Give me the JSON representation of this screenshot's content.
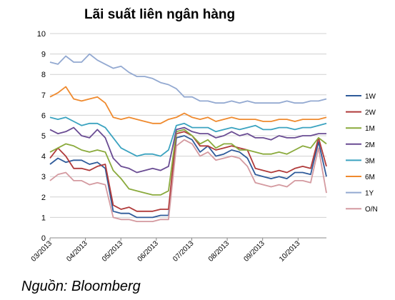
{
  "title": "Lãi suất liên ngân hàng",
  "source": "Nguồn: Bloomberg",
  "chart_data": {
    "type": "line",
    "ylim": [
      0,
      10
    ],
    "yticks": [
      "0",
      "1",
      "2",
      "3",
      "4",
      "5",
      "6",
      "7",
      "8",
      "9",
      "10"
    ],
    "xticks": [
      "03/2013",
      "04/2013",
      "05/2013",
      "06/2013",
      "07/2013",
      "08/2013",
      "09/2013",
      "10/2013"
    ],
    "grid": true,
    "legend_position": "right",
    "series": [
      {
        "name": "1W",
        "color": "#2f5b9a",
        "values": [
          3.6,
          3.9,
          3.7,
          3.8,
          3.8,
          3.6,
          3.7,
          3.4,
          1.3,
          1.2,
          1.2,
          1.0,
          1.0,
          1.0,
          1.1,
          1.1,
          4.9,
          5.0,
          4.8,
          4.2,
          4.5,
          4.0,
          4.1,
          4.3,
          4.2,
          3.9,
          3.1,
          3.0,
          2.9,
          3.0,
          2.9,
          3.2,
          3.2,
          3.1,
          4.7,
          3.0
        ]
      },
      {
        "name": "2W",
        "color": "#b03a3a",
        "values": [
          3.9,
          4.4,
          4.0,
          3.4,
          3.4,
          3.3,
          3.5,
          3.6,
          1.6,
          1.4,
          1.5,
          1.3,
          1.3,
          1.3,
          1.4,
          1.4,
          5.1,
          5.2,
          5.0,
          4.5,
          4.5,
          4.3,
          4.4,
          4.5,
          4.4,
          4.3,
          3.4,
          3.3,
          3.2,
          3.3,
          3.2,
          3.4,
          3.5,
          3.4,
          4.9,
          3.5
        ]
      },
      {
        "name": "1M",
        "color": "#8aaa3c",
        "values": [
          4.2,
          4.4,
          4.6,
          4.5,
          4.3,
          4.2,
          4.3,
          4.2,
          3.3,
          2.9,
          2.4,
          2.3,
          2.2,
          2.1,
          2.1,
          2.3,
          5.2,
          5.3,
          5.0,
          4.6,
          4.8,
          4.4,
          4.6,
          4.6,
          4.3,
          4.3,
          4.2,
          4.1,
          4.1,
          4.2,
          4.1,
          4.3,
          4.5,
          4.4,
          4.9,
          4.6
        ]
      },
      {
        "name": "2M",
        "color": "#6a4c93",
        "values": [
          5.3,
          5.1,
          5.2,
          5.4,
          5.0,
          4.9,
          5.3,
          4.9,
          3.9,
          3.5,
          3.4,
          3.2,
          3.3,
          3.4,
          3.3,
          3.5,
          5.3,
          5.4,
          5.2,
          5.1,
          5.1,
          4.9,
          5.0,
          5.2,
          5.0,
          5.1,
          4.9,
          4.9,
          4.8,
          5.0,
          4.9,
          4.9,
          5.0,
          5.0,
          5.1,
          5.1
        ]
      },
      {
        "name": "3M",
        "color": "#3ba3c0",
        "values": [
          5.9,
          5.8,
          5.9,
          5.7,
          5.5,
          5.6,
          5.6,
          5.4,
          4.9,
          4.4,
          4.2,
          4.0,
          4.1,
          4.1,
          4.0,
          4.3,
          5.5,
          5.6,
          5.4,
          5.4,
          5.4,
          5.2,
          5.3,
          5.4,
          5.3,
          5.4,
          5.5,
          5.3,
          5.3,
          5.4,
          5.4,
          5.3,
          5.4,
          5.4,
          5.5,
          5.6
        ]
      },
      {
        "name": "6M",
        "color": "#ef8a2e",
        "values": [
          6.9,
          7.1,
          7.4,
          6.8,
          6.7,
          6.8,
          6.9,
          6.6,
          5.9,
          5.8,
          5.9,
          5.8,
          5.7,
          5.6,
          5.6,
          5.8,
          5.9,
          6.1,
          5.9,
          5.8,
          5.9,
          5.7,
          5.8,
          5.9,
          5.8,
          5.8,
          5.8,
          5.7,
          5.7,
          5.8,
          5.8,
          5.7,
          5.8,
          5.8,
          5.8,
          5.9
        ]
      },
      {
        "name": "1Y",
        "color": "#93a9d1",
        "values": [
          8.6,
          8.5,
          8.9,
          8.6,
          8.6,
          9.0,
          8.7,
          8.5,
          8.3,
          8.4,
          8.1,
          7.9,
          7.9,
          7.8,
          7.6,
          7.5,
          7.3,
          6.9,
          6.9,
          6.7,
          6.7,
          6.6,
          6.6,
          6.7,
          6.6,
          6.7,
          6.6,
          6.6,
          6.6,
          6.6,
          6.7,
          6.6,
          6.6,
          6.7,
          6.7,
          6.8
        ]
      },
      {
        "name": "O/N",
        "color": "#d49aa0",
        "values": [
          2.8,
          3.1,
          3.2,
          2.8,
          2.8,
          2.6,
          2.7,
          2.6,
          1.0,
          0.9,
          0.9,
          0.8,
          0.8,
          0.8,
          0.9,
          0.9,
          4.5,
          4.8,
          4.6,
          4.0,
          4.2,
          3.8,
          3.9,
          4.0,
          3.9,
          3.5,
          2.7,
          2.6,
          2.5,
          2.6,
          2.5,
          2.8,
          2.8,
          2.7,
          4.4,
          2.2
        ]
      }
    ]
  }
}
